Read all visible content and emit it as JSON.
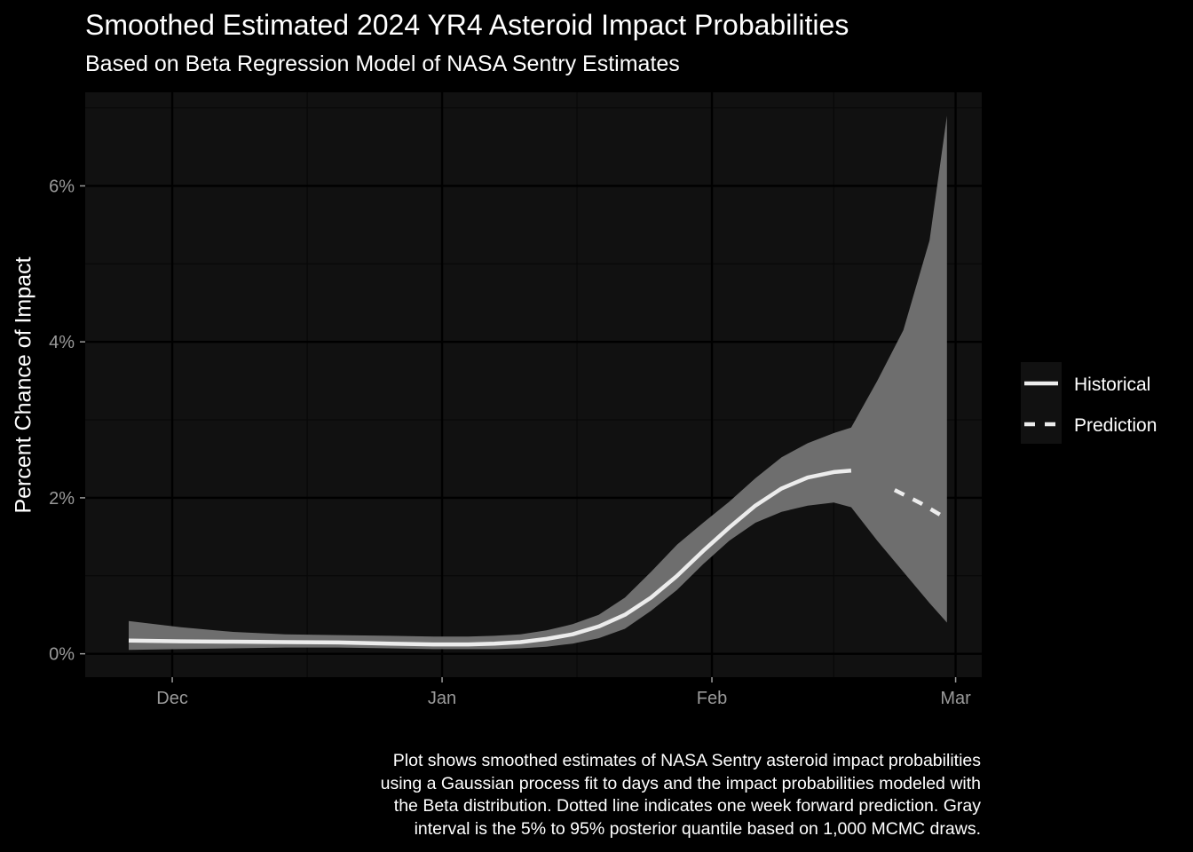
{
  "chart_data": {
    "type": "line",
    "title": "Smoothed Estimated 2024 YR4 Asteroid Impact Probabilities",
    "subtitle": "Based on Beta Regression Model of NASA Sentry Estimates",
    "xlabel": "",
    "ylabel": "Percent Chance of Impact",
    "x_ticks": [
      {
        "date": "2024-12-01",
        "label": "Dec"
      },
      {
        "date": "2025-01-01",
        "label": "Jan"
      },
      {
        "date": "2025-02-01",
        "label": "Feb"
      },
      {
        "date": "2025-03-01",
        "label": "Mar"
      }
    ],
    "y_ticks": [
      {
        "value": 0,
        "label": "0%"
      },
      {
        "value": 2,
        "label": "2%"
      },
      {
        "value": 4,
        "label": "4%"
      },
      {
        "value": 6,
        "label": "6%"
      }
    ],
    "xlim": [
      "2024-11-21",
      "2025-03-04"
    ],
    "ylim": [
      -0.3,
      7.2
    ],
    "grid": true,
    "legend_position": "right",
    "series": [
      {
        "name": "Historical",
        "linestyle": "solid",
        "color": "#ececec",
        "points": [
          {
            "date": "2024-11-26",
            "y": 0.17
          },
          {
            "date": "2024-12-02",
            "y": 0.16
          },
          {
            "date": "2024-12-08",
            "y": 0.155
          },
          {
            "date": "2024-12-14",
            "y": 0.15
          },
          {
            "date": "2024-12-20",
            "y": 0.145
          },
          {
            "date": "2024-12-26",
            "y": 0.13
          },
          {
            "date": "2024-12-31",
            "y": 0.12
          },
          {
            "date": "2025-01-04",
            "y": 0.12
          },
          {
            "date": "2025-01-07",
            "y": 0.13
          },
          {
            "date": "2025-01-10",
            "y": 0.15
          },
          {
            "date": "2025-01-13",
            "y": 0.19
          },
          {
            "date": "2025-01-16",
            "y": 0.25
          },
          {
            "date": "2025-01-19",
            "y": 0.35
          },
          {
            "date": "2025-01-22",
            "y": 0.5
          },
          {
            "date": "2025-01-25",
            "y": 0.72
          },
          {
            "date": "2025-01-28",
            "y": 1.0
          },
          {
            "date": "2025-01-31",
            "y": 1.32
          },
          {
            "date": "2025-02-03",
            "y": 1.62
          },
          {
            "date": "2025-02-06",
            "y": 1.9
          },
          {
            "date": "2025-02-09",
            "y": 2.12
          },
          {
            "date": "2025-02-12",
            "y": 2.26
          },
          {
            "date": "2025-02-15",
            "y": 2.33
          },
          {
            "date": "2025-02-17",
            "y": 2.35
          }
        ]
      },
      {
        "name": "Prediction",
        "linestyle": "dashed",
        "color": "#ececec",
        "points": [
          {
            "date": "2025-02-22",
            "y": 2.1
          },
          {
            "date": "2025-02-25",
            "y": 1.93
          },
          {
            "date": "2025-02-28",
            "y": 1.73
          }
        ]
      }
    ],
    "interval": {
      "name": "5% to 95% posterior quantile",
      "color": "#6e6e6e",
      "points": [
        {
          "date": "2024-11-26",
          "lo": 0.05,
          "hi": 0.42
        },
        {
          "date": "2024-12-02",
          "lo": 0.06,
          "hi": 0.34
        },
        {
          "date": "2024-12-08",
          "lo": 0.07,
          "hi": 0.28
        },
        {
          "date": "2024-12-14",
          "lo": 0.08,
          "hi": 0.25
        },
        {
          "date": "2024-12-20",
          "lo": 0.08,
          "hi": 0.24
        },
        {
          "date": "2024-12-26",
          "lo": 0.07,
          "hi": 0.23
        },
        {
          "date": "2024-12-31",
          "lo": 0.06,
          "hi": 0.22
        },
        {
          "date": "2025-01-04",
          "lo": 0.06,
          "hi": 0.22
        },
        {
          "date": "2025-01-07",
          "lo": 0.06,
          "hi": 0.23
        },
        {
          "date": "2025-01-10",
          "lo": 0.07,
          "hi": 0.25
        },
        {
          "date": "2025-01-13",
          "lo": 0.09,
          "hi": 0.3
        },
        {
          "date": "2025-01-16",
          "lo": 0.13,
          "hi": 0.38
        },
        {
          "date": "2025-01-19",
          "lo": 0.2,
          "hi": 0.5
        },
        {
          "date": "2025-01-22",
          "lo": 0.32,
          "hi": 0.72
        },
        {
          "date": "2025-01-25",
          "lo": 0.55,
          "hi": 1.05
        },
        {
          "date": "2025-01-28",
          "lo": 0.82,
          "hi": 1.4
        },
        {
          "date": "2025-01-31",
          "lo": 1.15,
          "hi": 1.68
        },
        {
          "date": "2025-02-03",
          "lo": 1.45,
          "hi": 1.95
        },
        {
          "date": "2025-02-06",
          "lo": 1.68,
          "hi": 2.25
        },
        {
          "date": "2025-02-09",
          "lo": 1.82,
          "hi": 2.52
        },
        {
          "date": "2025-02-12",
          "lo": 1.9,
          "hi": 2.7
        },
        {
          "date": "2025-02-15",
          "lo": 1.94,
          "hi": 2.83
        },
        {
          "date": "2025-02-17",
          "lo": 1.88,
          "hi": 2.9
        },
        {
          "date": "2025-02-20",
          "lo": 1.45,
          "hi": 3.5
        },
        {
          "date": "2025-02-23",
          "lo": 1.05,
          "hi": 4.15
        },
        {
          "date": "2025-02-26",
          "lo": 0.65,
          "hi": 5.3
        },
        {
          "date": "2025-02-28",
          "lo": 0.4,
          "hi": 6.9
        }
      ]
    }
  },
  "caption_lines": [
    "Plot shows smoothed estimates of NASA Sentry asteroid impact probabilities",
    "using a Gaussian process fit to days and the impact probabilities modeled with",
    "the Beta distribution. Dotted line indicates one week forward prediction. Gray",
    "interval is the 5% to 95% posterior quantile based on 1,000 MCMC draws."
  ],
  "colors": {
    "page_background": "#000000",
    "panel_background": "#111111",
    "grid_major": "#000000",
    "grid_minor": "#080808",
    "tick_text": "#9a9a9a",
    "line": "#ececec",
    "ribbon": "#6e6e6e"
  }
}
